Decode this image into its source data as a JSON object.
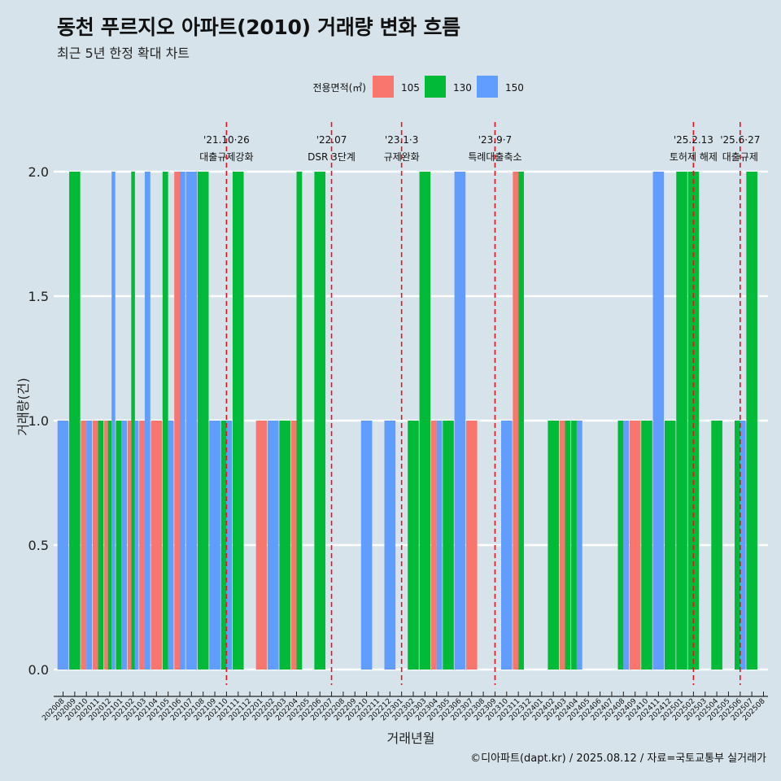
{
  "header": {
    "title": "동천 푸르지오 아파트(2010) 거래량 변화 흐름",
    "subtitle": "최근 5년 한정 확대 차트"
  },
  "caption": "©디아파트(dapt.kr) / 2025.08.12 / 자료=국토교통부 실거래가",
  "chart_data": {
    "type": "bar",
    "xlabel": "거래년월",
    "ylabel": "거래량(건)",
    "ylim": [
      0,
      2
    ],
    "yticks": [
      "0.0",
      "0.5",
      "1.0",
      "1.5",
      "2.0"
    ],
    "grid": "horizontal",
    "legend": {
      "title": "전용면적(㎡)",
      "position": "top"
    },
    "series_colors": {
      "105": "#f8766d",
      "130": "#00ba38",
      "150": "#619cff"
    },
    "series_names": [
      "105",
      "130",
      "150"
    ],
    "categories": [
      "202008",
      "202009",
      "202010",
      "202011",
      "202012",
      "202101",
      "202102",
      "202103",
      "202104",
      "202105",
      "202106",
      "202107",
      "202108",
      "202109",
      "202110",
      "202111",
      "202112",
      "202201",
      "202202",
      "202203",
      "202204",
      "202205",
      "202206",
      "202207",
      "202208",
      "202209",
      "202210",
      "202211",
      "202212",
      "202301",
      "202302",
      "202303",
      "202304",
      "202305",
      "202306",
      "202307",
      "202308",
      "202309",
      "202310",
      "202311",
      "202312",
      "202401",
      "202402",
      "202403",
      "202404",
      "202405",
      "202406",
      "202407",
      "202408",
      "202409",
      "202410",
      "202411",
      "202412",
      "202501",
      "202502",
      "202503",
      "202504",
      "202505",
      "202506",
      "202507",
      "202508"
    ],
    "bars": [
      {
        "month": "202008",
        "area": "150",
        "count": 1
      },
      {
        "month": "202009",
        "area": "130",
        "count": 2
      },
      {
        "month": "202010",
        "area": "105",
        "count": 1
      },
      {
        "month": "202010",
        "area": "150",
        "count": 1
      },
      {
        "month": "202011",
        "area": "105",
        "count": 1
      },
      {
        "month": "202011",
        "area": "130",
        "count": 1
      },
      {
        "month": "202012",
        "area": "105",
        "count": 1
      },
      {
        "month": "202012",
        "area": "130",
        "count": 1
      },
      {
        "month": "202012",
        "area": "150",
        "count": 2
      },
      {
        "month": "202101",
        "area": "130",
        "count": 1
      },
      {
        "month": "202101",
        "area": "150",
        "count": 1
      },
      {
        "month": "202102",
        "area": "105",
        "count": 1
      },
      {
        "month": "202102",
        "area": "130",
        "count": 2
      },
      {
        "month": "202102",
        "area": "150",
        "count": 1
      },
      {
        "month": "202103",
        "area": "105",
        "count": 1
      },
      {
        "month": "202103",
        "area": "150",
        "count": 2
      },
      {
        "month": "202104",
        "area": "105",
        "count": 1
      },
      {
        "month": "202105",
        "area": "130",
        "count": 2
      },
      {
        "month": "202105",
        "area": "150",
        "count": 1
      },
      {
        "month": "202106",
        "area": "105",
        "count": 2
      },
      {
        "month": "202106",
        "area": "150",
        "count": 2
      },
      {
        "month": "202107",
        "area": "150",
        "count": 2
      },
      {
        "month": "202108",
        "area": "130",
        "count": 2
      },
      {
        "month": "202109",
        "area": "150",
        "count": 1
      },
      {
        "month": "202110",
        "area": "130",
        "count": 1
      },
      {
        "month": "202110",
        "area": "150",
        "count": 1
      },
      {
        "month": "202111",
        "area": "130",
        "count": 2
      },
      {
        "month": "202201",
        "area": "105",
        "count": 1
      },
      {
        "month": "202202",
        "area": "150",
        "count": 1
      },
      {
        "month": "202203",
        "area": "130",
        "count": 1
      },
      {
        "month": "202204",
        "area": "105",
        "count": 1
      },
      {
        "month": "202204",
        "area": "130",
        "count": 2
      },
      {
        "month": "202206",
        "area": "130",
        "count": 2
      },
      {
        "month": "202210",
        "area": "150",
        "count": 1
      },
      {
        "month": "202212",
        "area": "150",
        "count": 1
      },
      {
        "month": "202302",
        "area": "130",
        "count": 1
      },
      {
        "month": "202303",
        "area": "130",
        "count": 2
      },
      {
        "month": "202304",
        "area": "105",
        "count": 1
      },
      {
        "month": "202304",
        "area": "150",
        "count": 1
      },
      {
        "month": "202305",
        "area": "130",
        "count": 1
      },
      {
        "month": "202306",
        "area": "150",
        "count": 2
      },
      {
        "month": "202307",
        "area": "105",
        "count": 1
      },
      {
        "month": "202310",
        "area": "150",
        "count": 1
      },
      {
        "month": "202311",
        "area": "105",
        "count": 2
      },
      {
        "month": "202311",
        "area": "130",
        "count": 2
      },
      {
        "month": "202402",
        "area": "130",
        "count": 1
      },
      {
        "month": "202403",
        "area": "105",
        "count": 1
      },
      {
        "month": "202403",
        "area": "130",
        "count": 1
      },
      {
        "month": "202404",
        "area": "130",
        "count": 1
      },
      {
        "month": "202404",
        "area": "150",
        "count": 1
      },
      {
        "month": "202408",
        "area": "130",
        "count": 1
      },
      {
        "month": "202408",
        "area": "150",
        "count": 1
      },
      {
        "month": "202409",
        "area": "105",
        "count": 1
      },
      {
        "month": "202410",
        "area": "130",
        "count": 1
      },
      {
        "month": "202411",
        "area": "150",
        "count": 2
      },
      {
        "month": "202412",
        "area": "130",
        "count": 1
      },
      {
        "month": "202501",
        "area": "130",
        "count": 2
      },
      {
        "month": "202502",
        "area": "130",
        "count": 2
      },
      {
        "month": "202504",
        "area": "130",
        "count": 1
      },
      {
        "month": "202506",
        "area": "150",
        "count": 1
      },
      {
        "month": "202506",
        "area": "130",
        "count": 1
      },
      {
        "month": "202507",
        "area": "130",
        "count": 2
      }
    ],
    "events": [
      {
        "month": "202110",
        "date": "'21.10·26",
        "label": "대출규제강화"
      },
      {
        "month": "202207",
        "date": "'22.07",
        "label": "DSR 3단계"
      },
      {
        "month": "202301",
        "date": "'23.1·3",
        "label": "규제완화"
      },
      {
        "month": "202309",
        "date": "'23.9·7",
        "label": "특례대출축소"
      },
      {
        "month": "202502",
        "date": "'25.2.13",
        "label": "토허제 해제"
      },
      {
        "month": "202506",
        "date": "'25.6·27",
        "label": "대출규제"
      }
    ]
  }
}
